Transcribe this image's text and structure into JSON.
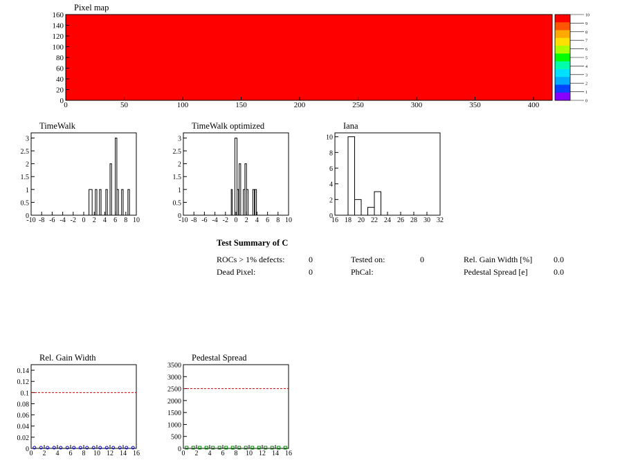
{
  "pixel_map": {
    "title": "Pixel map",
    "fill_color": "#ff0000",
    "colorbar_labels": [
      "10",
      "9",
      "8",
      "7",
      "6",
      "5",
      "4",
      "3",
      "2",
      "1",
      "0"
    ],
    "colorbar_colors": [
      "#ff0000",
      "#ff5500",
      "#ffaa00",
      "#ffe000",
      "#aaff00",
      "#00ff00",
      "#00ffaa",
      "#00e0ff",
      "#00aaff",
      "#0044ff",
      "#8800ff"
    ]
  },
  "chart_data": [
    {
      "id": "pixelmap",
      "type": "heatmap",
      "title": "Pixel map",
      "x": {
        "min": 0,
        "max": 416,
        "ticks": [
          0,
          50,
          100,
          150,
          200,
          250,
          300,
          350,
          400
        ]
      },
      "y": {
        "min": 0,
        "max": 160,
        "ticks": [
          0,
          20,
          40,
          60,
          80,
          100,
          120,
          140,
          160
        ]
      },
      "value": 10
    },
    {
      "id": "timewalk",
      "type": "bar",
      "title": "TimeWalk",
      "x": {
        "min": -10,
        "max": 10,
        "ticks": [
          -10,
          -8,
          -6,
          -4,
          -2,
          0,
          2,
          4,
          6,
          8,
          10
        ]
      },
      "y": {
        "min": 0,
        "max": 3.2,
        "ticks": [
          0,
          0.5,
          1,
          1.5,
          2,
          2.5,
          3
        ],
        "ticklabels": [
          "0",
          "0.5",
          "1",
          "1.5",
          "2",
          "2.5",
          "3"
        ]
      },
      "bins": [
        [
          1.0,
          1.6,
          1
        ],
        [
          2.2,
          2.5,
          1
        ],
        [
          3.0,
          3.3,
          1
        ],
        [
          4.2,
          4.5,
          1
        ],
        [
          5.0,
          5.3,
          2
        ],
        [
          6.0,
          6.3,
          3
        ],
        [
          6.3,
          6.6,
          1
        ],
        [
          7.2,
          7.5,
          1
        ],
        [
          8.4,
          8.7,
          1
        ]
      ]
    },
    {
      "id": "timewalk_opt",
      "type": "bar",
      "title": "TimeWalk optimized",
      "x": {
        "min": -10,
        "max": 10,
        "ticks": [
          -10,
          -8,
          -6,
          -4,
          -2,
          0,
          2,
          4,
          6,
          8,
          10
        ]
      },
      "y": {
        "min": 0,
        "max": 3.2,
        "ticks": [
          0,
          0.5,
          1,
          1.5,
          2,
          2.5,
          3
        ],
        "ticklabels": [
          "0",
          "0.5",
          "1",
          "1.5",
          "2",
          "2.5",
          "3"
        ]
      },
      "bins": [
        [
          -0.9,
          -0.7,
          1
        ],
        [
          -0.2,
          0.2,
          3
        ],
        [
          0.2,
          0.5,
          1
        ],
        [
          0.6,
          0.9,
          2
        ],
        [
          1.4,
          1.7,
          1
        ],
        [
          1.7,
          2.0,
          2
        ],
        [
          2.0,
          2.3,
          1
        ],
        [
          3.2,
          3.5,
          1
        ],
        [
          3.6,
          3.9,
          1
        ]
      ]
    },
    {
      "id": "iana",
      "type": "bar",
      "title": "Iana",
      "x": {
        "min": 16,
        "max": 32,
        "ticks": [
          16,
          18,
          20,
          22,
          24,
          26,
          28,
          30,
          32
        ]
      },
      "y": {
        "min": 0,
        "max": 10.5,
        "ticks": [
          0,
          2,
          4,
          6,
          8,
          10
        ],
        "ticklabels": [
          "0",
          "2",
          "4",
          "6",
          "8",
          "10"
        ]
      },
      "bins": [
        [
          18,
          19,
          10
        ],
        [
          19,
          20,
          2
        ],
        [
          20,
          21,
          0
        ],
        [
          21,
          22,
          1
        ],
        [
          22,
          23,
          3
        ]
      ]
    },
    {
      "id": "relgain",
      "type": "scatter",
      "title": "Rel. Gain Width",
      "x": {
        "min": 0,
        "max": 16,
        "ticks": [
          0,
          2,
          4,
          6,
          8,
          10,
          12,
          14,
          16
        ]
      },
      "y": {
        "min": 0,
        "max": 0.15,
        "ticks": [
          0,
          0.02,
          0.04,
          0.06,
          0.08,
          0.1,
          0.12,
          0.14
        ],
        "ticklabels": [
          "0",
          "0.02",
          "0.04",
          "0.06",
          "0.08",
          "0.1",
          "0.12",
          "0.14"
        ]
      },
      "threshold": 0.1,
      "threshold_color": "#cc0000",
      "marker_color": "#0000cc",
      "points": [
        [
          0,
          0
        ],
        [
          1,
          0
        ],
        [
          2,
          0
        ],
        [
          3,
          0
        ],
        [
          4,
          0
        ],
        [
          5,
          0
        ],
        [
          6,
          0
        ],
        [
          7,
          0
        ],
        [
          8,
          0
        ],
        [
          9,
          0
        ],
        [
          10,
          0
        ],
        [
          11,
          0
        ],
        [
          12,
          0
        ],
        [
          13,
          0
        ],
        [
          14,
          0
        ],
        [
          15,
          0
        ]
      ]
    },
    {
      "id": "pedspread",
      "type": "scatter",
      "title": "Pedestal Spread",
      "x": {
        "min": 0,
        "max": 16,
        "ticks": [
          0,
          2,
          4,
          6,
          8,
          10,
          12,
          14,
          16
        ]
      },
      "y": {
        "min": 0,
        "max": 3500,
        "ticks": [
          0,
          500,
          1000,
          1500,
          2000,
          2500,
          3000,
          3500
        ],
        "ticklabels": [
          "0",
          "500",
          "1000",
          "1500",
          "2000",
          "2500",
          "3000",
          "3500"
        ]
      },
      "threshold": 2500,
      "threshold_color": "#cc0000",
      "marker_color": "#008800",
      "points": [
        [
          0,
          0
        ],
        [
          1,
          0
        ],
        [
          2,
          0
        ],
        [
          3,
          0
        ],
        [
          4,
          0
        ],
        [
          5,
          0
        ],
        [
          6,
          0
        ],
        [
          7,
          0
        ],
        [
          8,
          0
        ],
        [
          9,
          0
        ],
        [
          10,
          0
        ],
        [
          11,
          0
        ],
        [
          12,
          0
        ],
        [
          13,
          0
        ],
        [
          14,
          0
        ],
        [
          15,
          0
        ]
      ]
    }
  ],
  "summary": {
    "title": "Test Summary of C",
    "rocs_label": "ROCs > 1% defects:",
    "rocs_value": "0",
    "dead_label": "Dead Pixel:",
    "dead_value": "0",
    "tested_label": "Tested on:",
    "tested_value": "0",
    "phcal_label": "PhCal:",
    "relgain_label": "Rel. Gain Width [%]",
    "relgain_value": "0.0",
    "ped_label": "Pedestal Spread [e]",
    "ped_value": "0.0"
  }
}
